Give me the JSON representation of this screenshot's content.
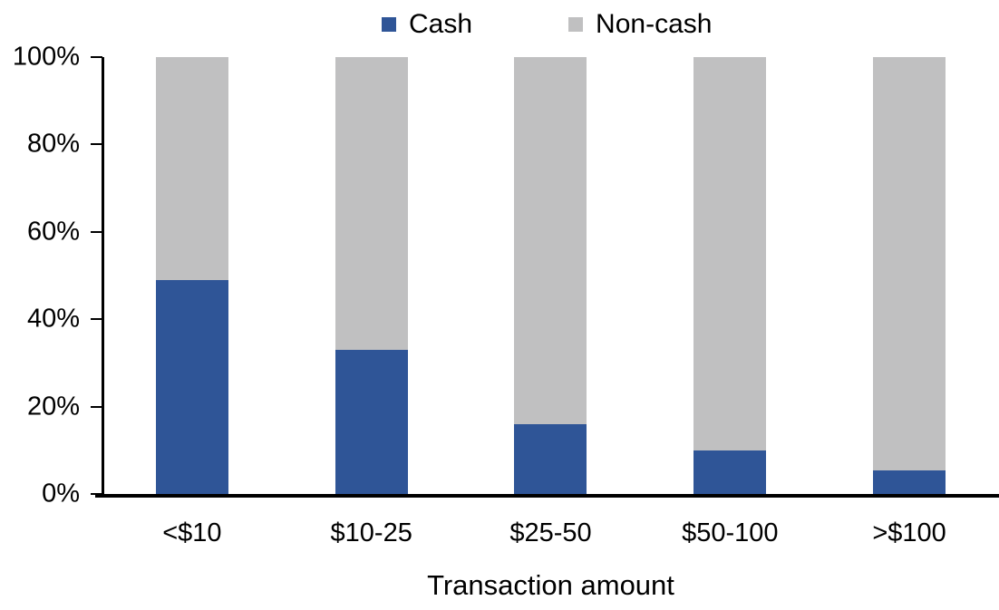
{
  "chart_data": {
    "type": "bar",
    "stacked": true,
    "orientation": "vertical",
    "title": "",
    "xlabel": "Transaction amount",
    "ylabel": "",
    "categories": [
      "<$10",
      "$10-25",
      "$25-50",
      "$50-100",
      ">$100"
    ],
    "series": [
      {
        "name": "Cash",
        "color": "#2F5597",
        "values": [
          49,
          33,
          16,
          10,
          5.5
        ]
      },
      {
        "name": "Non-cash",
        "color": "#C0C0C1",
        "values": [
          51,
          67,
          84,
          90,
          94.5
        ]
      }
    ],
    "yticks": [
      "0%",
      "20%",
      "40%",
      "60%",
      "80%",
      "100%"
    ],
    "ylim": [
      0,
      100
    ],
    "grid": false,
    "legend_position": "top-center",
    "axis_color": "#000000",
    "text_color": "#000000",
    "background_color": "#FFFFFF"
  }
}
